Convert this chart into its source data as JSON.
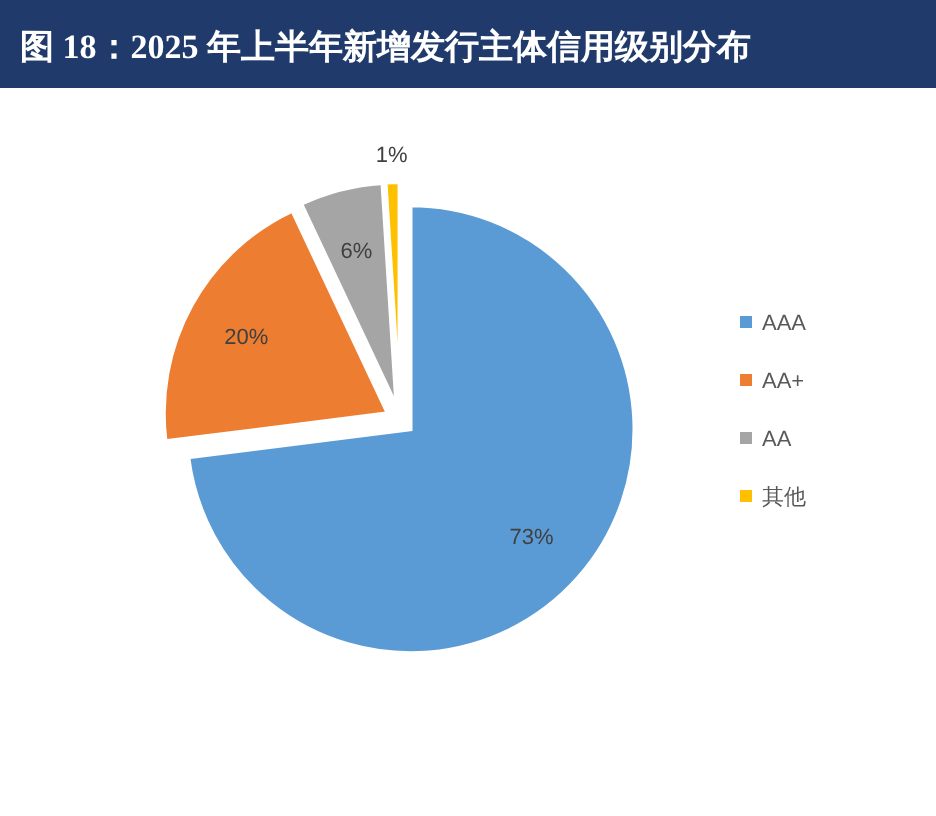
{
  "chart_data": {
    "type": "pie",
    "title": "图 18：2025 年上半年新增发行主体信用级别分布",
    "categories": [
      "AAA",
      "AA+",
      "AA",
      "其他"
    ],
    "values": [
      73,
      20,
      6,
      1
    ],
    "colors": [
      "#5b9bd5",
      "#ed7d31",
      "#a5a5a5",
      "#ffc000"
    ],
    "value_labels": [
      "73%",
      "20%",
      "6%",
      "1%"
    ],
    "legend": "right"
  }
}
